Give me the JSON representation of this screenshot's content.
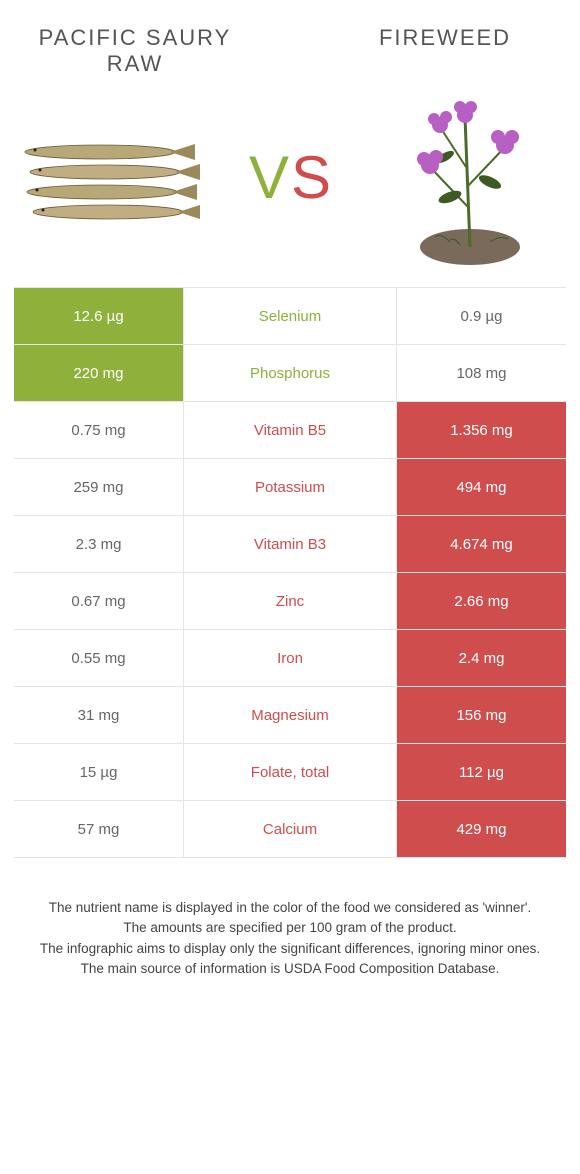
{
  "left_title": "Pacific saury raw",
  "right_title": "Fireweed",
  "vs_v_color": "#8fb13c",
  "vs_s_color": "#cf4d4d",
  "colors": {
    "left": "#8fb13c",
    "right": "#cf4d4d",
    "plain_text": "#666666"
  },
  "rows": [
    {
      "nutrient": "Selenium",
      "left": "12.6 µg",
      "right": "0.9 µg",
      "winner": "left"
    },
    {
      "nutrient": "Phosphorus",
      "left": "220 mg",
      "right": "108 mg",
      "winner": "left"
    },
    {
      "nutrient": "Vitamin B5",
      "left": "0.75 mg",
      "right": "1.356 mg",
      "winner": "right"
    },
    {
      "nutrient": "Potassium",
      "left": "259 mg",
      "right": "494 mg",
      "winner": "right"
    },
    {
      "nutrient": "Vitamin B3",
      "left": "2.3 mg",
      "right": "4.674 mg",
      "winner": "right"
    },
    {
      "nutrient": "Zinc",
      "left": "0.67 mg",
      "right": "2.66 mg",
      "winner": "right"
    },
    {
      "nutrient": "Iron",
      "left": "0.55 mg",
      "right": "2.4 mg",
      "winner": "right"
    },
    {
      "nutrient": "Magnesium",
      "left": "31 mg",
      "right": "156 mg",
      "winner": "right"
    },
    {
      "nutrient": "Folate, total",
      "left": "15 µg",
      "right": "112 µg",
      "winner": "right"
    },
    {
      "nutrient": "Calcium",
      "left": "57 mg",
      "right": "429 mg",
      "winner": "right"
    }
  ],
  "footer_lines": [
    "The nutrient name is displayed in the color of the food we considered as 'winner'.",
    "The amounts are specified per 100 gram of the product.",
    "The infographic aims to display only the significant differences, ignoring minor ones.",
    "The main source of information is USDA Food Composition Database."
  ]
}
